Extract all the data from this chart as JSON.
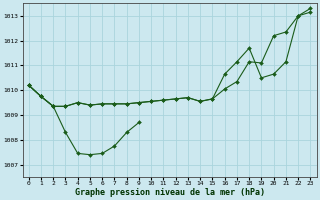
{
  "title": "Graphe pression niveau de la mer (hPa)",
  "bg_color": "#cce8ef",
  "grid_color": "#aad4dd",
  "line_color": "#1a5c1a",
  "xlim": [
    -0.5,
    23.5
  ],
  "ylim": [
    1006.5,
    1013.5
  ],
  "yticks": [
    1007,
    1008,
    1009,
    1010,
    1011,
    1012,
    1013
  ],
  "xticks": [
    0,
    1,
    2,
    3,
    4,
    5,
    6,
    7,
    8,
    9,
    10,
    11,
    12,
    13,
    14,
    15,
    16,
    17,
    18,
    19,
    20,
    21,
    22,
    23
  ],
  "line1_x": [
    0,
    1,
    2,
    3,
    4,
    5,
    6,
    7,
    8,
    9,
    10,
    11,
    12,
    13,
    14,
    15,
    16,
    17,
    18,
    19,
    20,
    21,
    22,
    23
  ],
  "line1_y": [
    1010.2,
    1009.75,
    1009.35,
    1009.35,
    1009.5,
    1009.4,
    1009.45,
    1009.45,
    1009.45,
    1009.5,
    1009.55,
    1009.6,
    1009.65,
    1009.7,
    1009.55,
    1009.65,
    1010.05,
    1010.35,
    1011.15,
    1011.1,
    1012.2,
    1012.35,
    1013.0,
    1013.15
  ],
  "line2_x": [
    0,
    1,
    2,
    3,
    4,
    5,
    6,
    7,
    8,
    9
  ],
  "line2_y": [
    1010.2,
    1009.75,
    1009.35,
    1008.3,
    1007.45,
    1007.4,
    1007.45,
    1007.75,
    1008.3,
    1008.7
  ],
  "line3_x": [
    0,
    1,
    2,
    3,
    4,
    5,
    6,
    7,
    8,
    9,
    10,
    11,
    12,
    13,
    14,
    15,
    16,
    17,
    18,
    19,
    20,
    21,
    22,
    23
  ],
  "line3_y": [
    1010.2,
    1009.75,
    1009.35,
    1009.35,
    1009.5,
    1009.4,
    1009.45,
    1009.45,
    1009.45,
    1009.5,
    1009.55,
    1009.6,
    1009.65,
    1009.7,
    1009.55,
    1009.65,
    1010.65,
    1011.15,
    1011.7,
    1010.5,
    1010.65,
    1011.15,
    1013.0,
    1013.3
  ]
}
